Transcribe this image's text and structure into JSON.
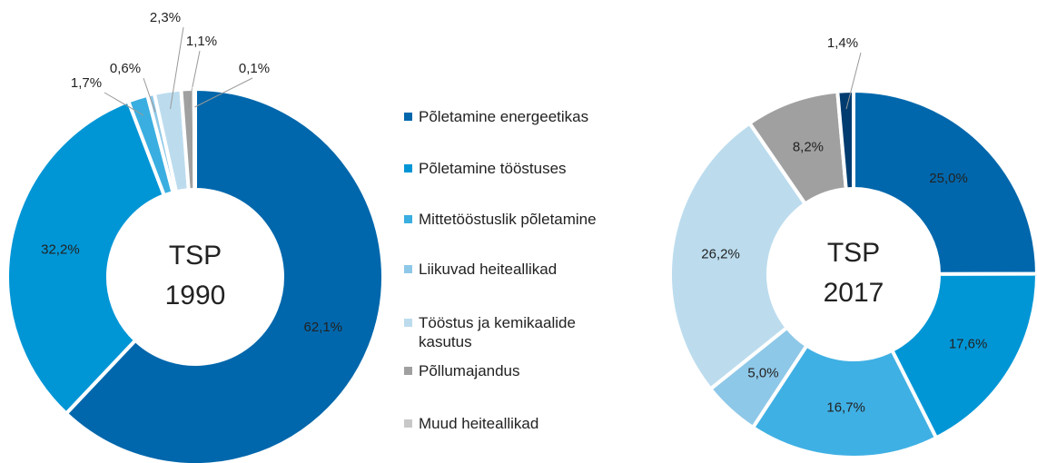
{
  "legend": {
    "categories": [
      "Põletamine energeetikas",
      "Põletamine tööstuses",
      "Mittetööstuslik põletamine",
      "Liikuvad heiteallikad",
      "Tööstus ja kemikaalide kasutus",
      "Põllumajandus",
      "Muud heiteallikad"
    ],
    "colors": [
      "#0067ac",
      "#0096d6",
      "#3aaee0",
      "#8ec8e8",
      "#bcdcee",
      "#a0a0a0",
      "#c8c8c8"
    ]
  },
  "chart_data": [
    {
      "type": "pie",
      "center_label": [
        "TSP",
        "1990"
      ],
      "values": [
        62.1,
        32.2,
        1.7,
        0.6,
        2.3,
        1.1,
        0.1
      ],
      "value_labels": [
        "62,1%",
        "32,2%",
        "1,7%",
        "0,6%",
        "2,3%",
        "1,1%",
        "0,1%"
      ],
      "colors": [
        "#0067ac",
        "#0096d6",
        "#3aaee0",
        "#8ec8e8",
        "#bcdcee",
        "#a0a0a0",
        "#c8c8c8"
      ]
    },
    {
      "type": "pie",
      "center_label": [
        "TSP",
        "2017"
      ],
      "values": [
        25.0,
        17.6,
        16.7,
        5.0,
        26.2,
        8.2,
        1.4
      ],
      "value_labels": [
        "25,0%",
        "17,6%",
        "16,7%",
        "5,0%",
        "26,2%",
        "8,2%",
        "1,4%"
      ],
      "colors": [
        "#0067ac",
        "#0096d6",
        "#3fb0e4",
        "#8ec8e8",
        "#bcdcee",
        "#a0a0a0",
        "#003c70"
      ]
    }
  ]
}
